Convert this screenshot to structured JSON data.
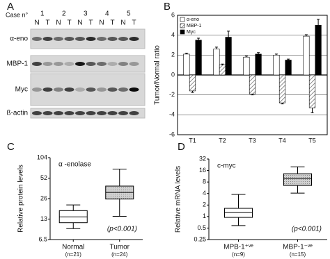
{
  "panels": [
    "A",
    "B",
    "C",
    "D"
  ],
  "blot": {
    "case_label": "Case n°",
    "cases": [
      "1",
      "2",
      "3",
      "4",
      "5"
    ],
    "lanes": [
      "N",
      "T",
      "N",
      "T",
      "N",
      "T",
      "N",
      "T",
      "N",
      "T"
    ],
    "rows": [
      "α-eno",
      "MBP-1",
      "Myc",
      "ß-actin"
    ]
  },
  "chart_data": [
    {
      "type": "bar",
      "y_label": "Tumor/Normal ratio",
      "categories": [
        "T1",
        "T2",
        "T3",
        "T4",
        "T5"
      ],
      "series": [
        {
          "name": "α-eno",
          "color": "#ffffff",
          "values": [
            2.1,
            2.6,
            1.8,
            2.0,
            3.9
          ],
          "errors": [
            0.1,
            0.2,
            0.1,
            0.1,
            0.15
          ]
        },
        {
          "name": "MBP-1",
          "color": "#888888",
          "pattern": "hatch",
          "values": [
            -1.6,
            1.0,
            -1.9,
            -2.8,
            -3.3
          ],
          "errors": [
            0.15,
            0.1,
            0.1,
            0.1,
            0.5
          ]
        },
        {
          "name": "Myc",
          "color": "#000000",
          "values": [
            3.5,
            3.8,
            2.1,
            1.5,
            5.0
          ],
          "errors": [
            0.2,
            0.6,
            0.15,
            0.1,
            0.6
          ]
        }
      ],
      "ylim": [
        -6,
        6
      ],
      "yticks": [
        -6,
        -4,
        -2,
        0,
        2,
        4,
        6
      ],
      "grid": true,
      "legend": "upper left"
    },
    {
      "type": "box",
      "y_label": "Relative protein levels",
      "annotation": "α -enolase",
      "note": "(p<0.001)",
      "categories": [
        "Normal",
        "Tumor"
      ],
      "sublabels": [
        "(n=21)",
        "(n=24)"
      ],
      "colors": [
        "#ffffff",
        "#c8c8c8"
      ],
      "stats": {
        "min": [
          9.4,
          14.3
        ],
        "q1": [
          11.5,
          25.6
        ],
        "median": [
          14,
          32
        ],
        "q3": [
          17.3,
          39.7
        ],
        "max": [
          21,
          70.6
        ]
      },
      "log_scale": true,
      "ylim": [
        6.5,
        104
      ],
      "yticks": [
        6.5,
        13,
        26,
        52,
        104
      ]
    },
    {
      "type": "box",
      "y_label": "Relative mRNA levels",
      "annotation": "c-myc",
      "note": "(p<0.001)",
      "categories": [
        "MPB-1⁺ᵛᵉ",
        "MBP-1⁻ᵛᵉ"
      ],
      "sublabels": [
        "(n=9)",
        "(n=15)"
      ],
      "colors": [
        "#ffffff",
        "#c8c8c8"
      ],
      "stats": {
        "min": [
          0.58,
          4.1
        ],
        "q1": [
          0.95,
          6.5
        ],
        "median": [
          1.27,
          9.9
        ],
        "q3": [
          1.64,
          13.2
        ],
        "max": [
          3.8,
          20
        ]
      },
      "log_scale": true,
      "ylim": [
        0.25,
        32
      ],
      "yticks": [
        0.25,
        0.5,
        1,
        2,
        4,
        8,
        16,
        32
      ]
    }
  ]
}
